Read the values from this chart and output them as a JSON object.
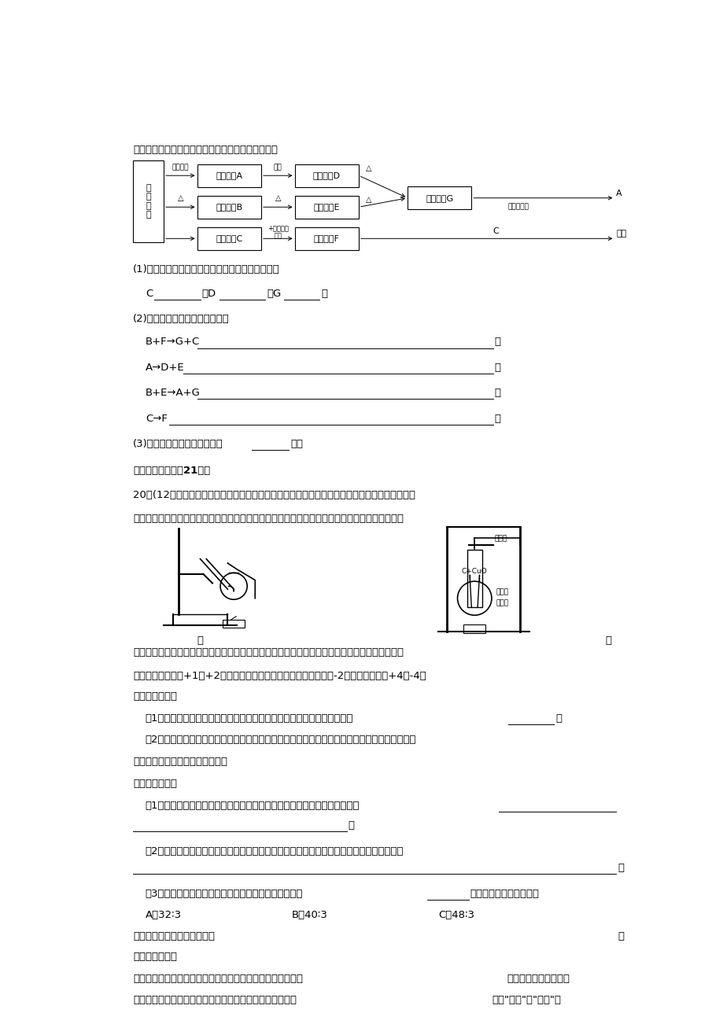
{
  "bg_color": "#ffffff",
  "page_width": 9.2,
  "page_height": 13.02,
  "dpi": 100
}
